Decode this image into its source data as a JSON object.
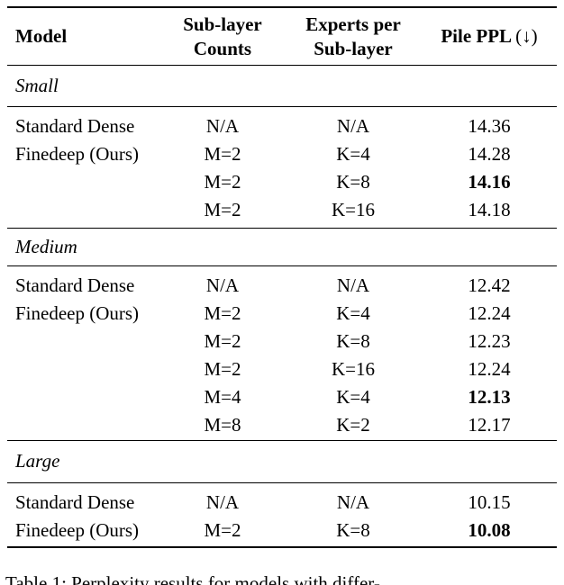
{
  "table": {
    "header": {
      "model": "Model",
      "col2_line1": "Sub-layer",
      "col2_line2": "Counts",
      "col3_line1": "Experts per",
      "col3_line2": "Sub-layer",
      "col4_main": "Pile PPL",
      "col4_suffix": "(↓)"
    },
    "sections": [
      {
        "label": "Small",
        "rows": [
          {
            "model": "Standard Dense",
            "sublayers": "N/A",
            "experts": "N/A",
            "ppl": "14.36",
            "best": false
          },
          {
            "model": "Finedeep (Ours)",
            "sublayers": "M=2",
            "experts": "K=4",
            "ppl": "14.28",
            "best": false
          },
          {
            "model": "",
            "sublayers": "M=2",
            "experts": "K=8",
            "ppl": "14.16",
            "best": true
          },
          {
            "model": "",
            "sublayers": "M=2",
            "experts": "K=16",
            "ppl": "14.18",
            "best": false
          }
        ]
      },
      {
        "label": "Medium",
        "rows": [
          {
            "model": "Standard Dense",
            "sublayers": "N/A",
            "experts": "N/A",
            "ppl": "12.42",
            "best": false
          },
          {
            "model": "Finedeep (Ours)",
            "sublayers": "M=2",
            "experts": "K=4",
            "ppl": "12.24",
            "best": false
          },
          {
            "model": "",
            "sublayers": "M=2",
            "experts": "K=8",
            "ppl": "12.23",
            "best": false
          },
          {
            "model": "",
            "sublayers": "M=2",
            "experts": "K=16",
            "ppl": "12.24",
            "best": false
          },
          {
            "model": "",
            "sublayers": "M=4",
            "experts": "K=4",
            "ppl": "12.13",
            "best": true
          },
          {
            "model": "",
            "sublayers": "M=8",
            "experts": "K=2",
            "ppl": "12.17",
            "best": false
          }
        ]
      },
      {
        "label": "Large",
        "rows": [
          {
            "model": "Standard Dense",
            "sublayers": "N/A",
            "experts": "N/A",
            "ppl": "10.15",
            "best": false
          },
          {
            "model": "Finedeep (Ours)",
            "sublayers": "M=2",
            "experts": "K=8",
            "ppl": "10.08",
            "best": true
          }
        ]
      }
    ]
  },
  "caption": "Table 1: Perplexity results for models with differ-"
}
